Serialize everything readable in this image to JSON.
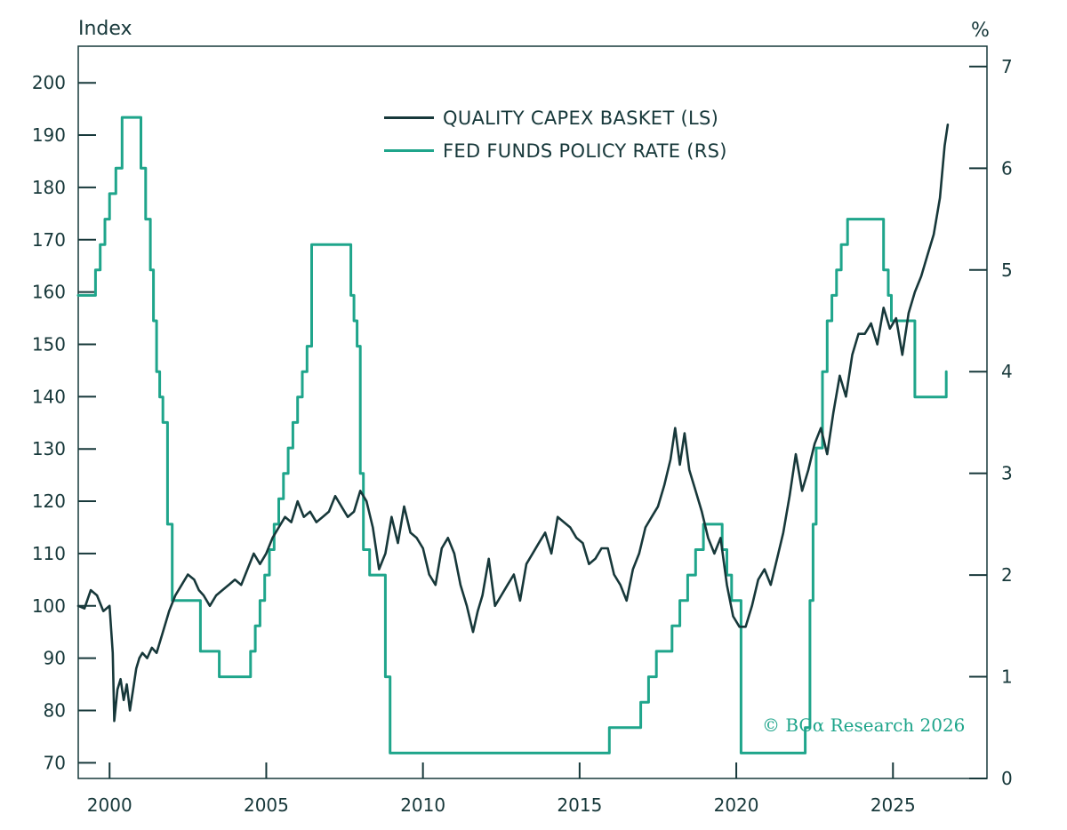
{
  "chart_data": {
    "type": "line",
    "ylabel_left": "Index",
    "ylabel_right": "%",
    "ylim_left": [
      67,
      207
    ],
    "ylim_right": [
      0,
      7.2
    ],
    "xlim": [
      1999.0,
      2028.0
    ],
    "x_ticks": [
      2000,
      2005,
      2010,
      2015,
      2020,
      2025
    ],
    "y_ticks_left": [
      70,
      80,
      90,
      100,
      110,
      120,
      130,
      140,
      150,
      160,
      170,
      180,
      190,
      200
    ],
    "y_ticks_right": [
      0,
      1,
      2,
      3,
      4,
      5,
      6,
      7
    ],
    "legend_placement": "top-center",
    "grid": false,
    "colors": {
      "basket": "#17383a",
      "fed": "#1fa58b",
      "axis": "#17383a"
    },
    "series": [
      {
        "name": "QUALITY CAPEX BASKET (LS)",
        "axis": "left",
        "color": "#17383a",
        "x": [
          1999.0,
          1999.2,
          1999.4,
          1999.6,
          1999.8,
          2000.0,
          2000.1,
          2000.15,
          2000.25,
          2000.35,
          2000.45,
          2000.55,
          2000.65,
          2000.75,
          2000.85,
          2000.95,
          2001.05,
          2001.2,
          2001.35,
          2001.5,
          2001.7,
          2001.9,
          2002.1,
          2002.3,
          2002.5,
          2002.7,
          2002.85,
          2003.0,
          2003.2,
          2003.4,
          2003.6,
          2003.8,
          2004.0,
          2004.2,
          2004.4,
          2004.6,
          2004.8,
          2005.0,
          2005.2,
          2005.4,
          2005.6,
          2005.8,
          2006.0,
          2006.2,
          2006.4,
          2006.6,
          2006.8,
          2007.0,
          2007.2,
          2007.4,
          2007.6,
          2007.8,
          2008.0,
          2008.2,
          2008.4,
          2008.6,
          2008.8,
          2009.0,
          2009.2,
          2009.4,
          2009.6,
          2009.8,
          2010.0,
          2010.2,
          2010.4,
          2010.6,
          2010.8,
          2011.0,
          2011.2,
          2011.4,
          2011.6,
          2011.75,
          2011.9,
          2012.1,
          2012.3,
          2012.5,
          2012.7,
          2012.9,
          2013.1,
          2013.3,
          2013.5,
          2013.7,
          2013.9,
          2014.1,
          2014.3,
          2014.5,
          2014.7,
          2014.9,
          2015.1,
          2015.3,
          2015.5,
          2015.7,
          2015.9,
          2016.1,
          2016.3,
          2016.5,
          2016.7,
          2016.9,
          2017.1,
          2017.3,
          2017.5,
          2017.7,
          2017.9,
          2018.05,
          2018.2,
          2018.35,
          2018.5,
          2018.7,
          2018.9,
          2019.1,
          2019.3,
          2019.5,
          2019.7,
          2019.9,
          2020.1,
          2020.3,
          2020.5,
          2020.7,
          2020.9,
          2021.1,
          2021.3,
          2021.5,
          2021.7,
          2021.9,
          2022.1,
          2022.3,
          2022.5,
          2022.7,
          2022.9,
          2023.1,
          2023.3,
          2023.5,
          2023.7,
          2023.9,
          2024.1,
          2024.3,
          2024.5,
          2024.7,
          2024.9,
          2025.1,
          2025.3,
          2025.5,
          2025.7,
          2025.9,
          2026.1,
          2026.3,
          2026.5,
          2026.65,
          2026.75
        ],
        "values": [
          100,
          99.5,
          103,
          102,
          99,
          100,
          91,
          78,
          84,
          86,
          82,
          85,
          80,
          84,
          88,
          90,
          91,
          90,
          92,
          91,
          95,
          99,
          102,
          104,
          106,
          105,
          103,
          102,
          100,
          102,
          103,
          104,
          105,
          104,
          107,
          110,
          108,
          110,
          113,
          115,
          117,
          116,
          120,
          117,
          118,
          116,
          117,
          118,
          121,
          119,
          117,
          118,
          122,
          120,
          115,
          107,
          110,
          117,
          112,
          119,
          114,
          113,
          111,
          106,
          104,
          111,
          113,
          110,
          104,
          100,
          95,
          99,
          102,
          109,
          100,
          102,
          104,
          106,
          101,
          108,
          110,
          112,
          114,
          110,
          117,
          116,
          115,
          113,
          112,
          108,
          109,
          111,
          111,
          106,
          104,
          101,
          107,
          110,
          115,
          117,
          119,
          123,
          128,
          134,
          127,
          133,
          126,
          122,
          118,
          113,
          110,
          113,
          104,
          98,
          96,
          96,
          100,
          105,
          107,
          104,
          109,
          114,
          121,
          129,
          122,
          126,
          131,
          134,
          129,
          137,
          144,
          140,
          148,
          152,
          152,
          154,
          150,
          157,
          153,
          155,
          148,
          156,
          160,
          163,
          167,
          171,
          178,
          188,
          192
        ],
        "shape": "linear"
      },
      {
        "name": "FED FUNDS POLICY RATE (RS)",
        "axis": "right",
        "color": "#1fa58b",
        "x": [
          1999.0,
          1999.55,
          1999.7,
          1999.85,
          2000.0,
          2000.2,
          2000.4,
          2001.0,
          2001.15,
          2001.3,
          2001.4,
          2001.5,
          2001.6,
          2001.7,
          2001.85,
          2002.0,
          2002.9,
          2003.5,
          2004.5,
          2004.65,
          2004.8,
          2004.95,
          2005.1,
          2005.25,
          2005.4,
          2005.55,
          2005.7,
          2005.85,
          2006.0,
          2006.15,
          2006.3,
          2006.45,
          2007.7,
          2007.8,
          2007.9,
          2008.0,
          2008.1,
          2008.3,
          2008.8,
          2008.95,
          2015.95,
          2016.95,
          2017.2,
          2017.45,
          2017.95,
          2018.2,
          2018.45,
          2018.7,
          2018.95,
          2019.55,
          2019.7,
          2019.85,
          2020.15,
          2020.2,
          2022.2,
          2022.35,
          2022.45,
          2022.55,
          2022.75,
          2022.9,
          2023.05,
          2023.2,
          2023.35,
          2023.55,
          2024.7,
          2024.85,
          2024.95,
          2025.7,
          2026.7
        ],
        "values": [
          4.75,
          5.0,
          5.25,
          5.5,
          5.75,
          6.0,
          6.5,
          6.0,
          5.5,
          5.0,
          4.5,
          4.0,
          3.75,
          3.5,
          2.5,
          1.75,
          1.25,
          1.0,
          1.25,
          1.5,
          1.75,
          2.0,
          2.25,
          2.5,
          2.75,
          3.0,
          3.25,
          3.5,
          3.75,
          4.0,
          4.25,
          5.25,
          4.75,
          4.5,
          4.25,
          3.0,
          2.25,
          2.0,
          1.0,
          0.25,
          0.5,
          0.75,
          1.0,
          1.25,
          1.5,
          1.75,
          2.0,
          2.25,
          2.5,
          2.25,
          2.0,
          1.75,
          0.25,
          0.25,
          0.5,
          1.75,
          2.5,
          3.25,
          4.0,
          4.5,
          4.75,
          5.0,
          5.25,
          5.5,
          5.0,
          4.75,
          4.5,
          3.75,
          4.0
        ],
        "shape": "step"
      }
    ]
  },
  "copyright": "© BCα Research 2026"
}
